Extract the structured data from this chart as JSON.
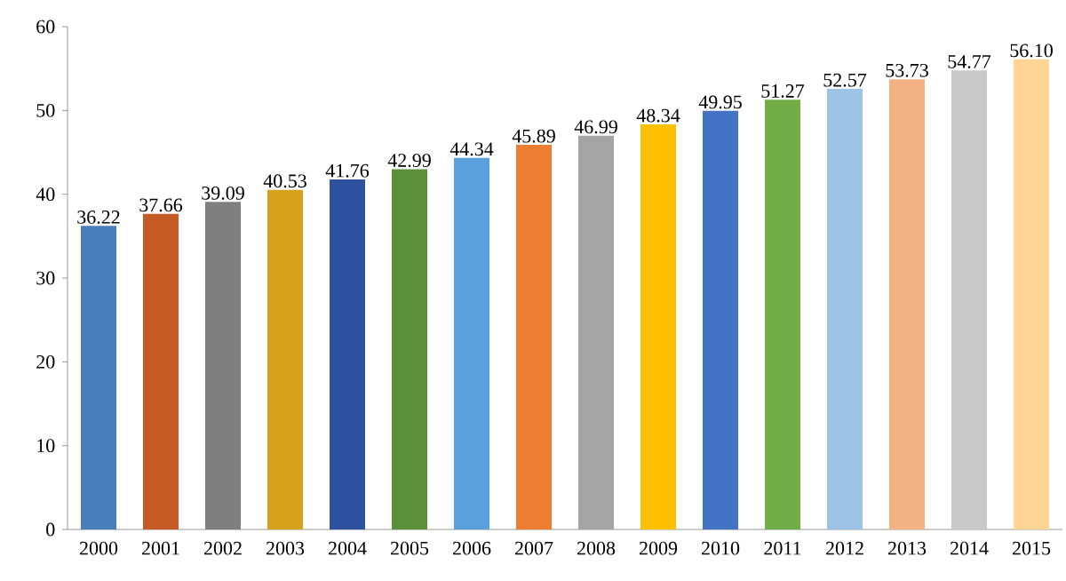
{
  "chart_data": {
    "type": "bar",
    "categories": [
      "2000",
      "2001",
      "2002",
      "2003",
      "2004",
      "2005",
      "2006",
      "2007",
      "2008",
      "2009",
      "2010",
      "2011",
      "2012",
      "2013",
      "2014",
      "2015"
    ],
    "values": [
      36.22,
      37.66,
      39.09,
      40.53,
      41.76,
      42.99,
      44.34,
      45.89,
      46.99,
      48.34,
      49.95,
      51.27,
      52.57,
      53.73,
      54.77,
      56.1
    ],
    "value_labels": [
      "36.22",
      "37.66",
      "39.09",
      "40.53",
      "41.76",
      "42.99",
      "44.34",
      "45.89",
      "46.99",
      "48.34",
      "49.95",
      "51.27",
      "52.57",
      "53.73",
      "54.77",
      "56.10"
    ],
    "colors": [
      "#4a7ebb",
      "#c55a24",
      "#7f7f7f",
      "#d6a21e",
      "#2f52a0",
      "#5b8f3a",
      "#5aa0dc",
      "#ed7d31",
      "#a5a5a5",
      "#ffc000",
      "#4472c4",
      "#70ad47",
      "#9dc3e6",
      "#f4b183",
      "#c9c9c9",
      "#ffd596"
    ],
    "ylim": [
      0,
      60
    ],
    "yticks": [
      0,
      10,
      20,
      30,
      40,
      50,
      60
    ],
    "grid": false
  }
}
